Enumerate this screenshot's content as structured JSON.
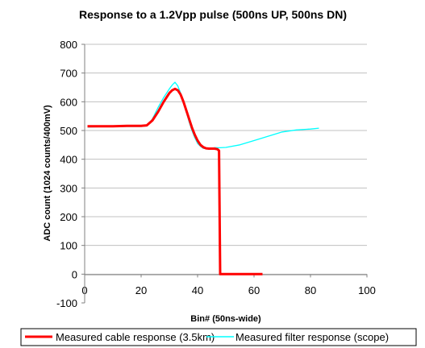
{
  "chart_data": {
    "type": "line",
    "title": "Response to a 1.2Vpp pulse (500ns UP, 500ns DN)",
    "xlabel": "Bin# (50ns-wide)",
    "ylabel": "ADC count (1024 counts/400mV)",
    "xlim": [
      0,
      100
    ],
    "ylim": [
      -100,
      800
    ],
    "xticks": [
      0,
      20,
      40,
      60,
      80,
      100
    ],
    "yticks": [
      -100,
      0,
      100,
      200,
      300,
      400,
      500,
      600,
      700,
      800
    ],
    "grid": "horizontal",
    "legend_position": "bottom",
    "series": [
      {
        "name": "Measured cable response (3.5km)",
        "color": "#ff0000",
        "x": [
          1,
          5,
          10,
          15,
          20,
          22,
          24,
          26,
          28,
          30,
          31,
          32,
          33,
          34,
          35,
          36,
          37,
          38,
          39,
          40,
          41,
          42,
          43,
          44,
          45,
          46,
          47,
          47.6,
          48,
          50,
          55,
          60,
          63
        ],
        "y": [
          515,
          515,
          515,
          516,
          516,
          518,
          535,
          565,
          600,
          630,
          640,
          645,
          640,
          625,
          600,
          570,
          540,
          510,
          485,
          465,
          450,
          442,
          438,
          437,
          437,
          437,
          435,
          430,
          0,
          0,
          0,
          0,
          0
        ]
      },
      {
        "name": "Measured filter response (scope)",
        "color": "#00ffff",
        "x": [
          1,
          5,
          10,
          15,
          20,
          22,
          24,
          26,
          28,
          30,
          31,
          32,
          33,
          34,
          35,
          36,
          37,
          38,
          39,
          40,
          41,
          42,
          43,
          44,
          45,
          46,
          48,
          50,
          55,
          60,
          65,
          70,
          75,
          80,
          83
        ],
        "y": [
          512,
          513,
          514,
          514,
          514,
          516,
          540,
          580,
          615,
          645,
          658,
          668,
          655,
          630,
          600,
          565,
          530,
          500,
          475,
          455,
          445,
          438,
          437,
          436,
          438,
          440,
          440,
          441,
          450,
          465,
          480,
          495,
          502,
          505,
          508
        ]
      }
    ]
  }
}
